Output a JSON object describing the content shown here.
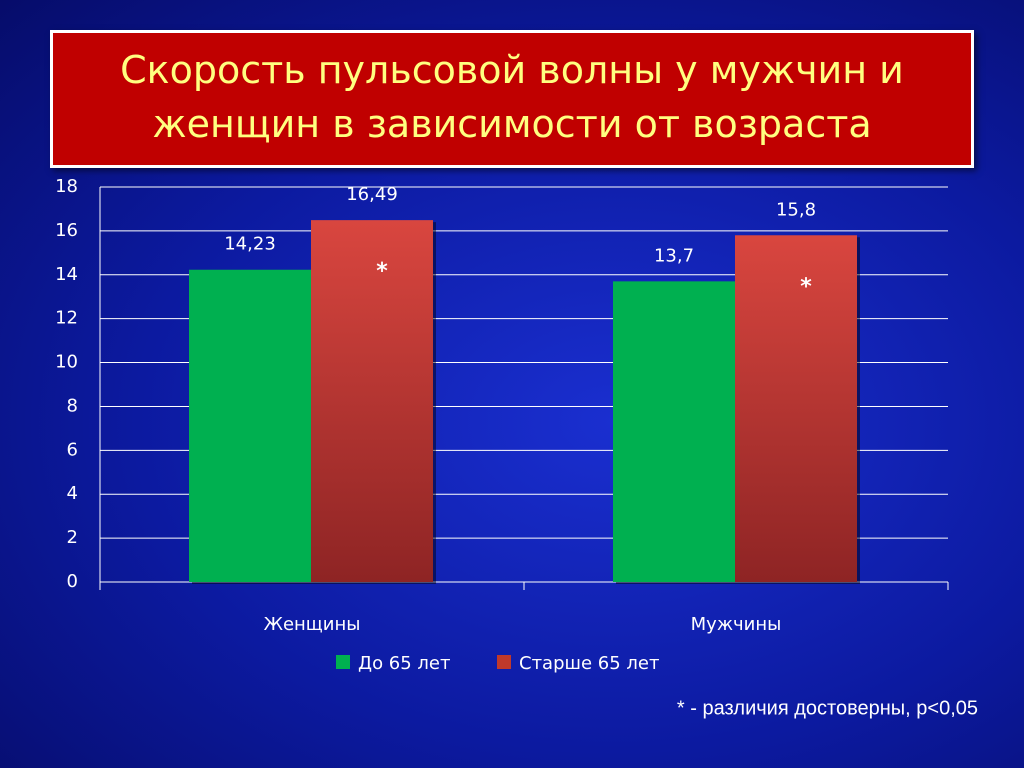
{
  "chart_data": {
    "type": "bar",
    "title": "Скорость пульсовой волны у мужчин и\nженщин в зависимости от возраста",
    "categories": [
      "Женщины",
      "Мужчины"
    ],
    "series": [
      {
        "name": "До 65 лет",
        "color": "#00b050",
        "values": [
          14.23,
          13.7
        ],
        "value_labels": [
          "14,23",
          "13,7"
        ]
      },
      {
        "name": "Старше 65 лет",
        "color": "#c0392b",
        "values": [
          16.49,
          15.8
        ],
        "value_labels": [
          "16,49",
          "15,8"
        ],
        "annotations": [
          "*",
          "*"
        ]
      }
    ],
    "ylim": [
      0,
      18
    ],
    "yticks": [
      0,
      2,
      4,
      6,
      8,
      10,
      12,
      14,
      16,
      18
    ],
    "grid": true,
    "footnote": "* - различия достоверны, p<0,05"
  }
}
